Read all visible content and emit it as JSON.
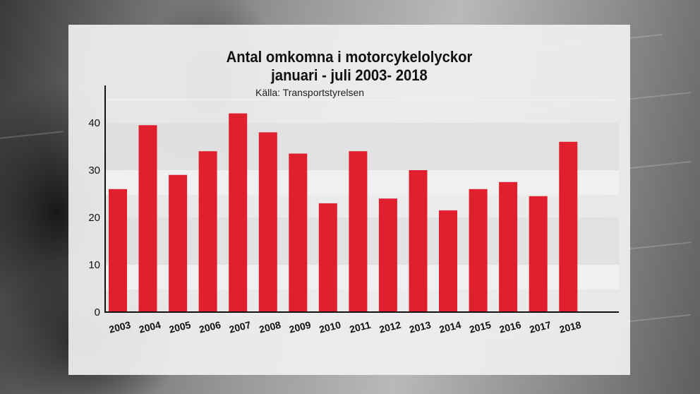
{
  "colors": {
    "bar": "#e0202e",
    "axis": "#111111",
    "band": "#dadada",
    "panel": "#f0f0f0"
  },
  "chart_data": {
    "type": "bar",
    "title": "Antal omkomna i motorcykelolyckor",
    "subtitle": "januari - juli 2003- 2018",
    "source": "Källa: Transportstyrelsen",
    "xlabel": "",
    "ylabel": "",
    "categories": [
      "2003",
      "2004",
      "2005",
      "2006",
      "2007",
      "2008",
      "2009",
      "2010",
      "2011",
      "2012",
      "2013",
      "2014",
      "2015",
      "2016",
      "2017",
      "2018"
    ],
    "values": [
      26,
      39.5,
      29,
      34,
      42,
      38,
      33.5,
      23,
      34,
      24,
      30,
      21.5,
      26,
      27.5,
      24.5,
      36
    ],
    "ylim": [
      0,
      45
    ],
    "yticks": [
      0,
      10,
      20,
      30,
      40
    ],
    "grid": "alternating horizontal bands",
    "legend": "none"
  }
}
